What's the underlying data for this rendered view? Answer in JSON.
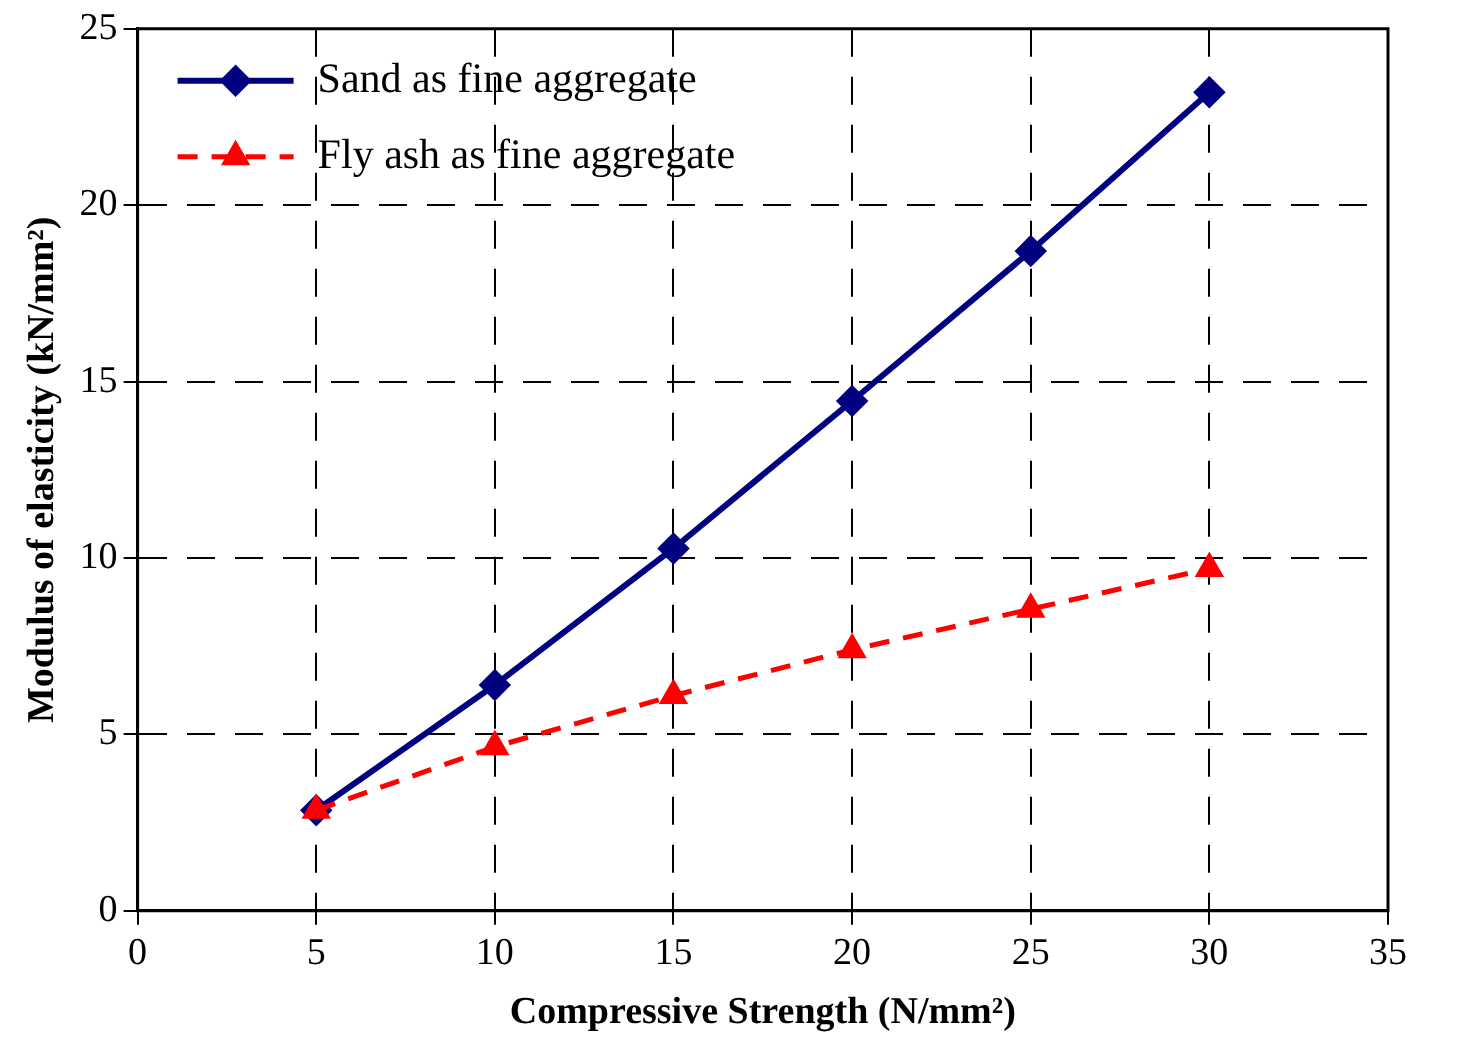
{
  "chart_data": {
    "type": "line",
    "xlabel": "Compressive Strength (N/mm²)",
    "ylabel": "Modulus of elasticity (kN/mm²)",
    "x": [
      5,
      10,
      15,
      20,
      25,
      30
    ],
    "series": [
      {
        "name": "Sand as fine aggregate",
        "color": "#000080",
        "values": [
          2.85,
          6.4,
          10.27,
          14.45,
          18.7,
          23.2
        ],
        "marker": "diamond",
        "line_style": "solid"
      },
      {
        "name": "Fly ash as fine aggregate",
        "color": "#ff0000",
        "values": [
          2.85,
          4.65,
          6.1,
          7.4,
          8.55,
          9.7
        ],
        "marker": "triangle",
        "line_style": "dashed"
      }
    ],
    "xlim": [
      0,
      35
    ],
    "xticks": [
      0,
      5,
      10,
      15,
      20,
      25,
      30,
      35
    ],
    "ylim": [
      0,
      25
    ],
    "yticks": [
      0,
      5,
      10,
      15,
      20,
      25
    ],
    "grid": true,
    "legend": "top left"
  }
}
